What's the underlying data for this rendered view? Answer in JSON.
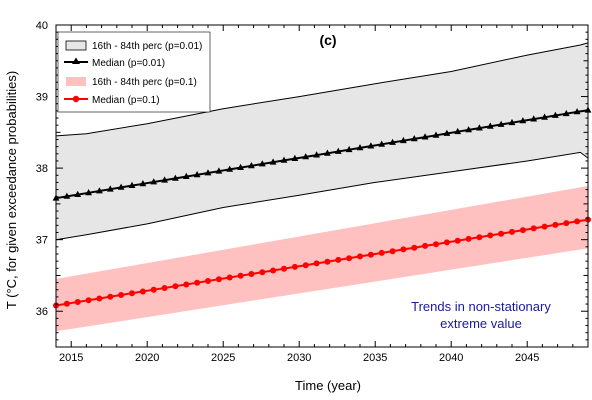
{
  "chart_data": {
    "type": "line",
    "panel_label": "(c)",
    "xlabel": "Time (year)",
    "ylabel": "T (°C, for given exceedance probabilities)",
    "xlim": [
      2014,
      2049
    ],
    "ylim": [
      35.5,
      40
    ],
    "x_ticks": [
      2015,
      2020,
      2025,
      2030,
      2035,
      2040,
      2045
    ],
    "y_ticks": [
      36,
      37,
      38,
      39,
      40
    ],
    "grid": false,
    "legend_position": "top-left",
    "annotation": [
      "Trends in non-stationary",
      "extreme value"
    ],
    "colors": {
      "band_p001_fill": "#e6e6e6",
      "band_p001_edge": "#000000",
      "median_p001": "#000000",
      "band_p01_fill": "#ffc0c0",
      "median_p01": "#ff0000",
      "annotation": "#1a1aa0"
    },
    "series": [
      {
        "name": "16th - 84th perc (p=0.01)",
        "kind": "band",
        "x": [
          2014,
          2016,
          2020,
          2025,
          2030,
          2035,
          2040,
          2045,
          2048.5,
          2049
        ],
        "lower": [
          37.0,
          37.07,
          37.22,
          37.45,
          37.62,
          37.8,
          37.95,
          38.1,
          38.22,
          38.14
        ],
        "upper": [
          38.45,
          38.48,
          38.62,
          38.83,
          39.0,
          39.18,
          39.35,
          39.58,
          39.72,
          39.75
        ]
      },
      {
        "name": "Median (p=0.01)",
        "kind": "line",
        "marker": "triangle",
        "x_start": 2014,
        "x_end": 2049,
        "y_start": 37.58,
        "y_end": 38.81,
        "n_points": 50
      },
      {
        "name": "16th - 84th perc (p=0.1)",
        "kind": "band",
        "x": [
          2014,
          2049
        ],
        "lower": [
          35.72,
          36.88
        ],
        "upper": [
          36.45,
          37.75
        ]
      },
      {
        "name": "Median (p=0.1)",
        "kind": "line",
        "marker": "circle",
        "x_start": 2014,
        "x_end": 2049,
        "y_start": 36.08,
        "y_end": 37.28,
        "n_points": 50
      }
    ]
  }
}
